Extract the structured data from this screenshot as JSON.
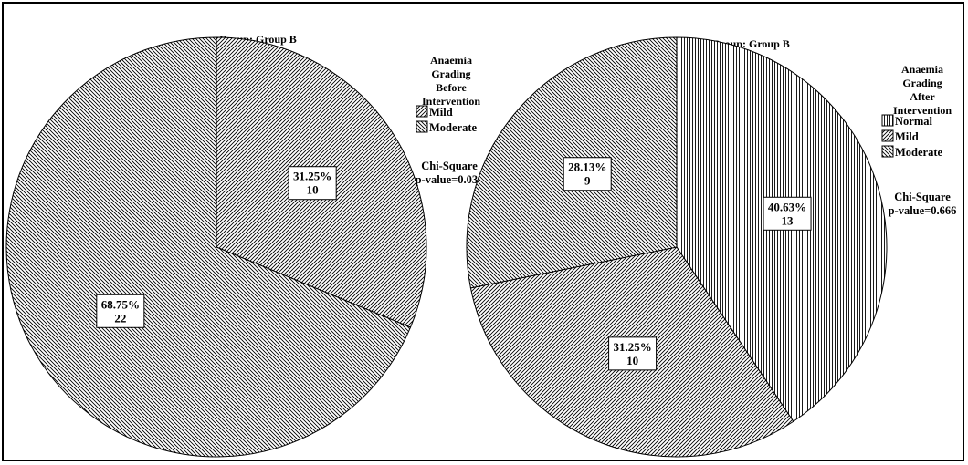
{
  "chart_data": [
    {
      "type": "pie",
      "title": "Group: Group B",
      "legend_title": [
        "Anaemia",
        "Grading",
        "Before",
        "Intervention"
      ],
      "legend_placement": "right",
      "categories": [
        "Mild",
        "Moderate"
      ],
      "values": [
        10,
        22
      ],
      "percentages": [
        "31.25%",
        "68.75%"
      ],
      "counts": [
        "10",
        "22"
      ],
      "patterns": [
        "diagonal-right",
        "diagonal-left"
      ],
      "start_angle_deg": 0,
      "statistic": [
        "Chi-Square",
        "p-value=0.034"
      ]
    },
    {
      "type": "pie",
      "title": "Group: Group B",
      "legend_title": [
        "Anaemia",
        "Grading",
        "After",
        "Intervention"
      ],
      "legend_placement": "right",
      "categories": [
        "Normal",
        "Mild",
        "Moderate"
      ],
      "values": [
        13,
        10,
        9
      ],
      "percentages": [
        "40.63%",
        "31.25%",
        "28.13%"
      ],
      "counts": [
        "13",
        "10",
        "9"
      ],
      "patterns": [
        "vertical",
        "diagonal-right",
        "diagonal-left"
      ],
      "start_angle_deg": 0,
      "statistic": [
        "Chi-Square",
        "p-value=0.666"
      ]
    }
  ],
  "colors": {
    "line": "#000000",
    "background": "#ffffff"
  }
}
